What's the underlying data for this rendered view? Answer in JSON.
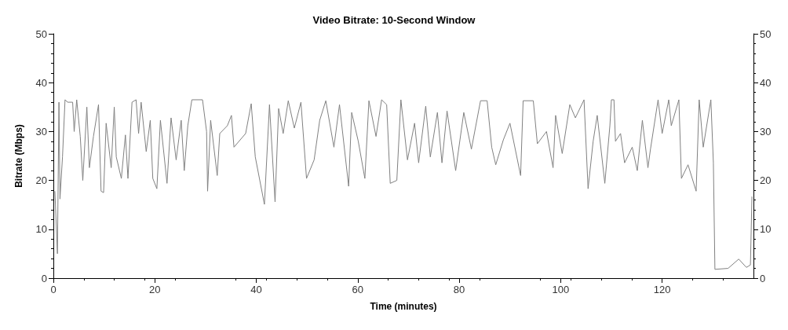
{
  "chart_data": {
    "type": "line",
    "title": "Video Bitrate: 10-Second Window",
    "xlabel": "Time (minutes)",
    "ylabel": "Bitrate (Mbps)",
    "xlim": [
      0,
      138
    ],
    "xticks": [
      0,
      20,
      40,
      60,
      80,
      100,
      120
    ],
    "ylim": [
      0,
      50
    ],
    "yticks": [
      0,
      10,
      20,
      30,
      40,
      50
    ],
    "y2lim": [
      0,
      50
    ],
    "y2ticks": [
      0,
      10,
      20,
      30,
      40,
      50
    ],
    "marker": "none",
    "line_style": "solid",
    "series": [
      {
        "color": "#808080",
        "x": [
          0.3,
          0.8,
          1.1,
          1.3,
          1.8,
          2.3,
          2.8,
          3.8,
          4.1,
          4.6,
          5.3,
          5.8,
          6.6,
          7.1,
          7.9,
          8.9,
          9.4,
          9.9,
          10.4,
          11.4,
          12.0,
          12.4,
          13.4,
          14.2,
          14.7,
          15.5,
          16.3,
          16.8,
          17.3,
          18.3,
          19.1,
          19.6,
          20.4,
          21.1,
          22.4,
          23.2,
          24.2,
          25.2,
          25.8,
          26.5,
          27.3,
          29.4,
          30.2,
          30.4,
          31.0,
          32.3,
          32.8,
          34.3,
          35.1,
          35.6,
          37.9,
          39.0,
          39.8,
          41.6,
          42.6,
          43.7,
          44.4,
          45.3,
          46.3,
          47.5,
          48.8,
          49.9,
          51.4,
          52.5,
          53.7,
          55.3,
          56.4,
          58.2,
          58.8,
          60.1,
          61.4,
          62.2,
          63.6,
          64.7,
          65.7,
          66.4,
          67.7,
          68.5,
          69.8,
          71.2,
          72.0,
          73.4,
          74.3,
          75.7,
          76.6,
          77.6,
          79.3,
          80.9,
          82.4,
          84.2,
          85.5,
          86.4,
          87.2,
          88.7,
          90.0,
          92.1,
          92.6,
          94.6,
          95.4,
          97.2,
          98.5,
          99.0,
          100.3,
          101.8,
          102.9,
          104.6,
          105.4,
          106.4,
          107.2,
          108.7,
          109.7,
          110.0,
          110.5,
          110.8,
          111.8,
          112.6,
          114.1,
          115.1,
          116.1,
          117.2,
          117.7,
          119.2,
          120.0,
          121.3,
          121.8,
          123.3,
          123.8,
          125.1,
          126.7,
          127.3,
          128.1,
          129.6,
          130.1,
          130.4,
          133.0,
          135.1,
          136.6,
          137.4,
          137.7
        ],
        "values": [
          17.8,
          5,
          36,
          16.2,
          24.8,
          36.5,
          36,
          36,
          30,
          36.5,
          29,
          20,
          35,
          22.6,
          29,
          35.5,
          17.8,
          17.5,
          31.7,
          22.6,
          35,
          24.8,
          20.4,
          29.3,
          20.4,
          36,
          36.5,
          29.6,
          36,
          25.9,
          32.3,
          20.4,
          18.3,
          32.3,
          19.4,
          32.8,
          24.2,
          32.3,
          22,
          31.2,
          36.5,
          36.5,
          30,
          17.8,
          32.3,
          21,
          29.6,
          31.2,
          33.3,
          26.8,
          29.6,
          35.7,
          24.8,
          15.1,
          35.5,
          15.6,
          34.7,
          29.6,
          36.3,
          30.7,
          36,
          20.4,
          24.2,
          32.3,
          36.3,
          26.8,
          35.5,
          18.8,
          33.9,
          28,
          20.4,
          36.3,
          29,
          36.5,
          35.5,
          19.4,
          20,
          36.5,
          24.2,
          31.7,
          23.6,
          35.2,
          24.8,
          33.9,
          23.6,
          34.2,
          22,
          33.9,
          26.4,
          36.3,
          36.3,
          26.8,
          23.2,
          28.3,
          31.7,
          21,
          36.3,
          36.3,
          27.5,
          30,
          22.6,
          33.3,
          25.5,
          35.5,
          32.8,
          36.5,
          18.3,
          28,
          33.3,
          19.4,
          31.2,
          36.5,
          36.5,
          28,
          29.6,
          23.6,
          26.8,
          22,
          32.3,
          22.6,
          26.4,
          36.5,
          29.6,
          36.5,
          31.2,
          36.5,
          20.4,
          23.2,
          17.8,
          36.5,
          26.8,
          36.5,
          23.6,
          1.8,
          2,
          3.9,
          2.2,
          2.7,
          16.7
        ]
      }
    ]
  }
}
